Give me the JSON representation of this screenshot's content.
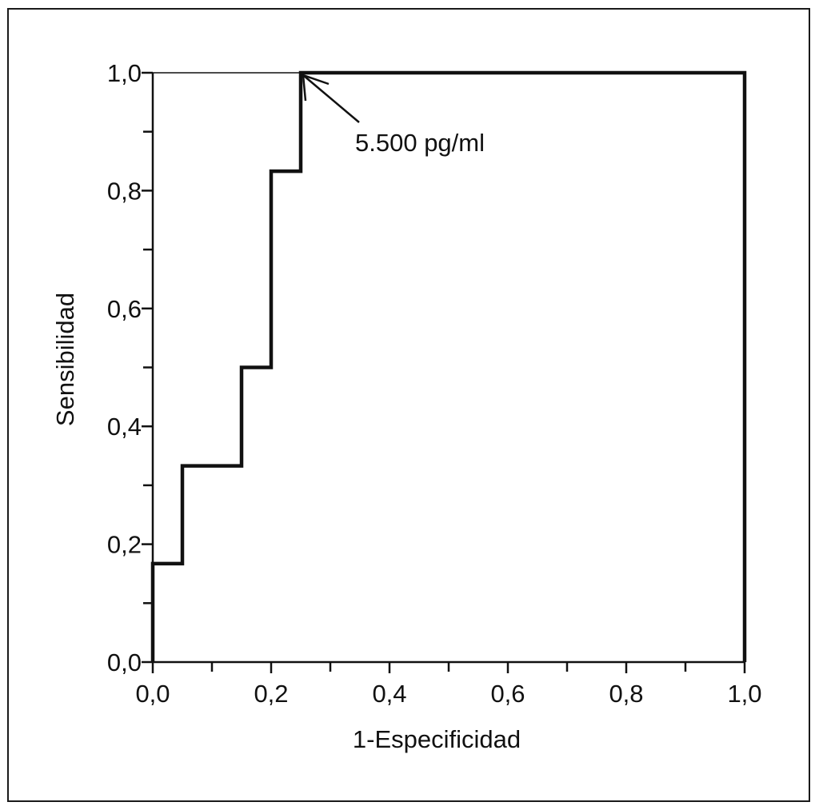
{
  "chart_data": {
    "type": "line",
    "title": "",
    "xlabel": "1-Especificidad",
    "ylabel": "Sensibilidad",
    "xlim": [
      0,
      1
    ],
    "ylim": [
      0,
      1
    ],
    "x_ticks": [
      "0,0",
      "0,2",
      "0,4",
      "0,6",
      "0,8",
      "1,0"
    ],
    "y_ticks": [
      "0,0",
      "0,2",
      "0,4",
      "0,6",
      "0,8",
      "1,0"
    ],
    "grid": false,
    "legend": "none",
    "series": [
      {
        "style": "step",
        "color": "#111111",
        "x": [
          0.0,
          0.0,
          0.05,
          0.05,
          0.15,
          0.15,
          0.2,
          0.2,
          0.25,
          0.25,
          1.0,
          1.0
        ],
        "y": [
          0.0,
          0.167,
          0.167,
          0.333,
          0.333,
          0.5,
          0.5,
          0.833,
          0.833,
          1.0,
          1.0,
          0.0
        ]
      }
    ],
    "reference_line": {
      "x": [
        0,
        0.25
      ],
      "y": [
        1.0,
        1.0
      ]
    },
    "annotations": [
      {
        "text": "5.500 pg/ml",
        "x": 0.25,
        "y": 1.0
      }
    ]
  }
}
